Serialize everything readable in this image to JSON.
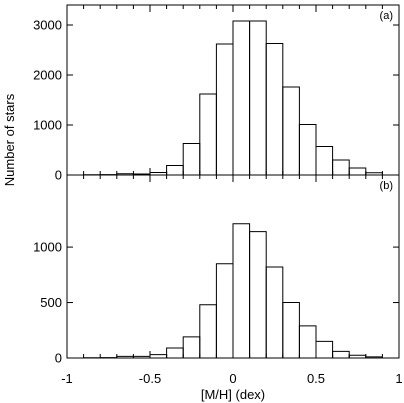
{
  "chart_data": [
    {
      "type": "bar",
      "panel_label": "(a)",
      "xlabel": "[M/H] (dex)",
      "ylabel": "Number of stars",
      "xlim": [
        -1,
        1
      ],
      "ylim": [
        0,
        3400
      ],
      "xticks": [
        -1,
        -0.5,
        0,
        0.5,
        1
      ],
      "xtick_labels": [
        "-1",
        "-0.5",
        "0",
        "0.5",
        "1"
      ],
      "yticks": [
        0,
        1000,
        2000,
        3000
      ],
      "ytick_labels": [
        "0",
        "1000",
        "2000",
        "3000"
      ],
      "bin_width": 0.1,
      "bins": [
        {
          "x": [
            -0.9,
            -0.8
          ],
          "value": 5
        },
        {
          "x": [
            -0.8,
            -0.7
          ],
          "value": 8
        },
        {
          "x": [
            -0.7,
            -0.6
          ],
          "value": 25
        },
        {
          "x": [
            -0.6,
            -0.5
          ],
          "value": 20
        },
        {
          "x": [
            -0.5,
            -0.4
          ],
          "value": 50
        },
        {
          "x": [
            -0.4,
            -0.3
          ],
          "value": 190
        },
        {
          "x": [
            -0.3,
            -0.2
          ],
          "value": 630
        },
        {
          "x": [
            -0.2,
            -0.1
          ],
          "value": 1620
        },
        {
          "x": [
            -0.1,
            0.0
          ],
          "value": 2620
        },
        {
          "x": [
            0.0,
            0.1
          ],
          "value": 3080
        },
        {
          "x": [
            0.1,
            0.2
          ],
          "value": 3080
        },
        {
          "x": [
            0.2,
            0.3
          ],
          "value": 2630
        },
        {
          "x": [
            0.3,
            0.4
          ],
          "value": 1760
        },
        {
          "x": [
            0.4,
            0.5
          ],
          "value": 1010
        },
        {
          "x": [
            0.5,
            0.6
          ],
          "value": 570
        },
        {
          "x": [
            0.6,
            0.7
          ],
          "value": 300
        },
        {
          "x": [
            0.7,
            0.8
          ],
          "value": 140
        },
        {
          "x": [
            0.8,
            0.9
          ],
          "value": 45
        }
      ]
    },
    {
      "type": "bar",
      "panel_label": "(b)",
      "xlabel": "[M/H] (dex)",
      "ylabel": "Number of stars",
      "xlim": [
        -1,
        1
      ],
      "ylim": [
        0,
        1650
      ],
      "xticks": [
        -1,
        -0.5,
        0,
        0.5,
        1
      ],
      "xtick_labels": [
        "-1",
        "-0.5",
        "0",
        "0.5",
        "1"
      ],
      "yticks": [
        0,
        500,
        1000
      ],
      "ytick_labels": [
        "0",
        "500",
        "1000"
      ],
      "bin_width": 0.1,
      "bins": [
        {
          "x": [
            -0.9,
            -0.8
          ],
          "value": 2
        },
        {
          "x": [
            -0.8,
            -0.7
          ],
          "value": 3
        },
        {
          "x": [
            -0.7,
            -0.6
          ],
          "value": 15
        },
        {
          "x": [
            -0.6,
            -0.5
          ],
          "value": 15
        },
        {
          "x": [
            -0.5,
            -0.4
          ],
          "value": 30
        },
        {
          "x": [
            -0.4,
            -0.3
          ],
          "value": 90
        },
        {
          "x": [
            -0.3,
            -0.2
          ],
          "value": 190
        },
        {
          "x": [
            -0.2,
            -0.1
          ],
          "value": 480
        },
        {
          "x": [
            -0.1,
            0.0
          ],
          "value": 850
        },
        {
          "x": [
            0.0,
            0.1
          ],
          "value": 1210
        },
        {
          "x": [
            0.1,
            0.2
          ],
          "value": 1140
        },
        {
          "x": [
            0.2,
            0.3
          ],
          "value": 820
        },
        {
          "x": [
            0.3,
            0.4
          ],
          "value": 500
        },
        {
          "x": [
            0.4,
            0.5
          ],
          "value": 290
        },
        {
          "x": [
            0.5,
            0.6
          ],
          "value": 150
        },
        {
          "x": [
            0.6,
            0.7
          ],
          "value": 60
        },
        {
          "x": [
            0.7,
            0.8
          ],
          "value": 25
        },
        {
          "x": [
            0.8,
            0.9
          ],
          "value": 10
        }
      ]
    }
  ]
}
